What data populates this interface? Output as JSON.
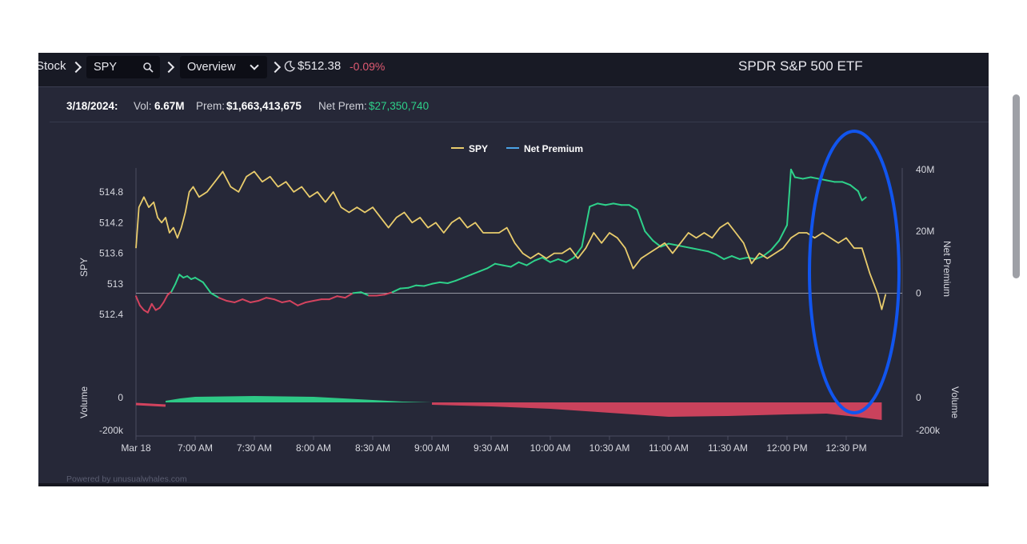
{
  "nav": {
    "category": "Stock",
    "ticker": "SPY",
    "view": "Overview",
    "price": "$512.38",
    "change": "-0.09%",
    "title": "SPDR S&P 500 ETF"
  },
  "stats": {
    "date": "3/18/2024:",
    "vol_label": "Vol:",
    "vol_value": "6.67M",
    "prem_label": "Prem:",
    "prem_value": "$1,663,413,675",
    "netprem_label": "Net Prem:",
    "netprem_value": "$27,350,740"
  },
  "footer": "Powered by unusualwhales.com",
  "colors": {
    "spy": "#e9cc6c",
    "net_positive": "#2ed18a",
    "net_negative": "#d3435e",
    "net_premium_legend": "#4ba3e6",
    "annotation": "#1155ee"
  },
  "chart_data": {
    "type": "line",
    "title": "",
    "legend": [
      "SPY",
      "Net Premium"
    ],
    "legend_position": "top-center",
    "x_tick_labels": [
      "Mar 18",
      "7:00 AM",
      "7:30 AM",
      "8:00 AM",
      "8:30 AM",
      "9:00 AM",
      "9:30 AM",
      "10:00 AM",
      "10:30 AM",
      "11:00 AM",
      "11:30 AM",
      "12:00 PM",
      "12:30 PM"
    ],
    "x_tick_times": [
      "06:00",
      "07:00",
      "07:30",
      "08:00",
      "08:30",
      "09:00",
      "09:30",
      "10:00",
      "10:30",
      "11:00",
      "11:30",
      "12:00",
      "12:30"
    ],
    "left_axis": {
      "label": "SPY",
      "ticks": [
        "514.8",
        "514.2",
        "513.6",
        "513",
        "512.4"
      ],
      "range": [
        512.2,
        515.3
      ]
    },
    "right_axis": {
      "label": "Net Premium",
      "ticks": [
        "40M",
        "20M",
        "0"
      ],
      "range": [
        -10000000,
        41000000
      ]
    },
    "volume_axis": {
      "label": "Volume",
      "ticks": [
        "0",
        "-200k"
      ]
    },
    "series": [
      {
        "name": "SPY",
        "points": [
          [
            "06:00",
            513.7
          ],
          [
            "06:03",
            514.5
          ],
          [
            "06:08",
            514.7
          ],
          [
            "06:13",
            514.5
          ],
          [
            "06:18",
            514.6
          ],
          [
            "06:22",
            514.3
          ],
          [
            "06:26",
            514.2
          ],
          [
            "06:30",
            514.3
          ],
          [
            "06:34",
            514.0
          ],
          [
            "06:38",
            514.1
          ],
          [
            "06:42",
            513.9
          ],
          [
            "06:46",
            514.1
          ],
          [
            "06:50",
            514.4
          ],
          [
            "06:54",
            514.8
          ],
          [
            "06:58",
            514.9
          ],
          [
            "07:02",
            514.7
          ],
          [
            "07:06",
            514.8
          ],
          [
            "07:10",
            515.0
          ],
          [
            "07:14",
            515.2
          ],
          [
            "07:18",
            514.9
          ],
          [
            "07:22",
            514.8
          ],
          [
            "07:26",
            515.1
          ],
          [
            "07:30",
            515.2
          ],
          [
            "07:34",
            515.0
          ],
          [
            "07:38",
            515.1
          ],
          [
            "07:42",
            514.9
          ],
          [
            "07:46",
            515.0
          ],
          [
            "07:50",
            514.8
          ],
          [
            "07:54",
            514.9
          ],
          [
            "07:58",
            514.7
          ],
          [
            "08:02",
            514.8
          ],
          [
            "08:06",
            514.6
          ],
          [
            "08:10",
            514.8
          ],
          [
            "08:14",
            514.5
          ],
          [
            "08:18",
            514.4
          ],
          [
            "08:22",
            514.5
          ],
          [
            "08:26",
            514.4
          ],
          [
            "08:30",
            514.5
          ],
          [
            "08:34",
            514.3
          ],
          [
            "08:38",
            514.1
          ],
          [
            "08:42",
            514.3
          ],
          [
            "08:46",
            514.4
          ],
          [
            "08:50",
            514.2
          ],
          [
            "08:54",
            514.3
          ],
          [
            "08:58",
            514.1
          ],
          [
            "09:02",
            514.2
          ],
          [
            "09:06",
            514.0
          ],
          [
            "09:10",
            514.2
          ],
          [
            "09:14",
            514.3
          ],
          [
            "09:18",
            514.1
          ],
          [
            "09:22",
            514.2
          ],
          [
            "09:26",
            514.0
          ],
          [
            "09:30",
            514.0
          ],
          [
            "09:34",
            514.0
          ],
          [
            "09:38",
            514.1
          ],
          [
            "09:42",
            513.8
          ],
          [
            "09:46",
            513.6
          ],
          [
            "09:50",
            513.5
          ],
          [
            "09:54",
            513.6
          ],
          [
            "09:58",
            513.5
          ],
          [
            "10:02",
            513.6
          ],
          [
            "10:06",
            513.6
          ],
          [
            "10:10",
            513.7
          ],
          [
            "10:14",
            513.5
          ],
          [
            "10:18",
            513.7
          ],
          [
            "10:22",
            514.0
          ],
          [
            "10:26",
            513.8
          ],
          [
            "10:30",
            514.0
          ],
          [
            "10:34",
            513.9
          ],
          [
            "10:38",
            513.7
          ],
          [
            "10:42",
            513.3
          ],
          [
            "10:46",
            513.5
          ],
          [
            "10:50",
            513.6
          ],
          [
            "10:54",
            513.7
          ],
          [
            "10:58",
            513.8
          ],
          [
            "11:02",
            513.6
          ],
          [
            "11:06",
            513.8
          ],
          [
            "11:10",
            514.0
          ],
          [
            "11:14",
            513.9
          ],
          [
            "11:18",
            514.0
          ],
          [
            "11:22",
            513.9
          ],
          [
            "11:26",
            514.1
          ],
          [
            "11:30",
            514.2
          ],
          [
            "11:34",
            514.0
          ],
          [
            "11:38",
            513.8
          ],
          [
            "11:42",
            513.4
          ],
          [
            "11:46",
            513.6
          ],
          [
            "11:50",
            513.5
          ],
          [
            "11:54",
            513.6
          ],
          [
            "11:58",
            513.7
          ],
          [
            "12:02",
            513.9
          ],
          [
            "12:06",
            514.0
          ],
          [
            "12:10",
            514.0
          ],
          [
            "12:14",
            513.9
          ],
          [
            "12:18",
            514.0
          ],
          [
            "12:22",
            513.9
          ],
          [
            "12:26",
            513.8
          ],
          [
            "12:30",
            513.9
          ],
          [
            "12:34",
            513.7
          ],
          [
            "12:38",
            513.7
          ],
          [
            "12:42",
            513.2
          ],
          [
            "12:46",
            512.8
          ],
          [
            "12:48",
            512.5
          ],
          [
            "12:50",
            512.8
          ]
        ]
      },
      {
        "name": "Net Premium",
        "points": [
          [
            "06:00",
            -1000000
          ],
          [
            "06:04",
            -4000000
          ],
          [
            "06:08",
            -5500000
          ],
          [
            "06:12",
            -6300000
          ],
          [
            "06:16",
            -3500000
          ],
          [
            "06:20",
            -5500000
          ],
          [
            "06:24",
            -4800000
          ],
          [
            "06:28",
            -3000000
          ],
          [
            "06:32",
            -600000
          ],
          [
            "06:36",
            500000
          ],
          [
            "06:40",
            3000000
          ],
          [
            "06:44",
            6000000
          ],
          [
            "06:48",
            5000000
          ],
          [
            "06:52",
            5500000
          ],
          [
            "06:56",
            4500000
          ],
          [
            "07:00",
            5000000
          ],
          [
            "07:04",
            3500000
          ],
          [
            "07:08",
            0
          ],
          [
            "07:12",
            -1500000
          ],
          [
            "07:16",
            -2500000
          ],
          [
            "07:20",
            -3000000
          ],
          [
            "07:24",
            -2000000
          ],
          [
            "07:28",
            -3000000
          ],
          [
            "07:32",
            -2500000
          ],
          [
            "07:36",
            -1500000
          ],
          [
            "07:40",
            -2000000
          ],
          [
            "07:44",
            -3000000
          ],
          [
            "07:48",
            -2500000
          ],
          [
            "07:52",
            -4000000
          ],
          [
            "07:56",
            -3000000
          ],
          [
            "08:00",
            -2500000
          ],
          [
            "08:04",
            -2000000
          ],
          [
            "08:08",
            -2000000
          ],
          [
            "08:12",
            -1000000
          ],
          [
            "08:16",
            -1500000
          ],
          [
            "08:20",
            0
          ],
          [
            "08:24",
            300000
          ],
          [
            "08:28",
            -800000
          ],
          [
            "08:32",
            -800000
          ],
          [
            "08:36",
            -500000
          ],
          [
            "08:40",
            300000
          ],
          [
            "08:44",
            1500000
          ],
          [
            "08:48",
            1700000
          ],
          [
            "08:52",
            2500000
          ],
          [
            "08:56",
            2300000
          ],
          [
            "09:00",
            3000000
          ],
          [
            "09:04",
            3500000
          ],
          [
            "09:08",
            3200000
          ],
          [
            "09:12",
            4000000
          ],
          [
            "09:16",
            5000000
          ],
          [
            "09:20",
            6000000
          ],
          [
            "09:24",
            7000000
          ],
          [
            "09:28",
            8000000
          ],
          [
            "09:32",
            9500000
          ],
          [
            "09:36",
            9000000
          ],
          [
            "09:40",
            8500000
          ],
          [
            "09:44",
            10000000
          ],
          [
            "09:48",
            9000000
          ],
          [
            "09:52",
            10500000
          ],
          [
            "09:56",
            11500000
          ],
          [
            "10:00",
            10000000
          ],
          [
            "10:04",
            11000000
          ],
          [
            "10:08",
            10000000
          ],
          [
            "10:12",
            11500000
          ],
          [
            "10:16",
            15000000
          ],
          [
            "10:20",
            28000000
          ],
          [
            "10:24",
            29000000
          ],
          [
            "10:28",
            28500000
          ],
          [
            "10:32",
            29000000
          ],
          [
            "10:36",
            28500000
          ],
          [
            "10:40",
            28500000
          ],
          [
            "10:44",
            27000000
          ],
          [
            "10:48",
            20000000
          ],
          [
            "10:52",
            17000000
          ],
          [
            "10:56",
            15000000
          ],
          [
            "11:00",
            16000000
          ],
          [
            "11:04",
            15500000
          ],
          [
            "11:08",
            15000000
          ],
          [
            "11:12",
            14500000
          ],
          [
            "11:16",
            14000000
          ],
          [
            "11:20",
            13500000
          ],
          [
            "11:24",
            12500000
          ],
          [
            "11:28",
            11000000
          ],
          [
            "11:32",
            12000000
          ],
          [
            "11:36",
            11000000
          ],
          [
            "11:40",
            11500000
          ],
          [
            "11:44",
            11000000
          ],
          [
            "11:48",
            12000000
          ],
          [
            "11:52",
            14000000
          ],
          [
            "11:56",
            17000000
          ],
          [
            "12:00",
            22000000
          ],
          [
            "12:02",
            40000000
          ],
          [
            "12:04",
            37500000
          ],
          [
            "12:08",
            37000000
          ],
          [
            "12:12",
            37500000
          ],
          [
            "12:16",
            37000000
          ],
          [
            "12:20",
            36500000
          ],
          [
            "12:24",
            36000000
          ],
          [
            "12:28",
            36000000
          ],
          [
            "12:32",
            35000000
          ],
          [
            "12:36",
            33000000
          ],
          [
            "12:38",
            30000000
          ],
          [
            "12:40",
            31000000
          ]
        ]
      }
    ]
  }
}
